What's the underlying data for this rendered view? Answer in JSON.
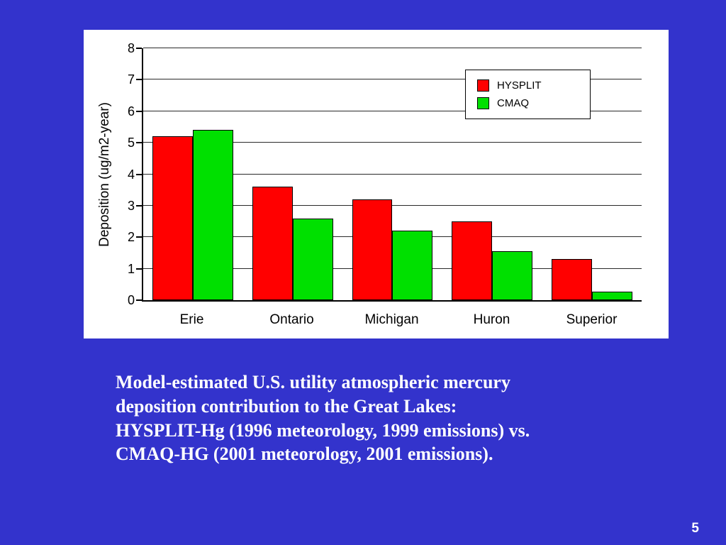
{
  "slide": {
    "page_number": "5",
    "background_color": "#3333cc",
    "caption_lines": [
      "Model-estimated U.S. utility atmospheric mercury",
      "deposition contribution to the Great Lakes:",
      "HYSPLIT-Hg (1996 meteorology, 1999 emissions) vs.",
      "CMAQ-HG (2001 meteorology, 2001 emissions)."
    ]
  },
  "chart_data": {
    "type": "bar",
    "categories": [
      "Erie",
      "Ontario",
      "Michigan",
      "Huron",
      "Superior"
    ],
    "series": [
      {
        "name": "HYSPLIT",
        "color": "#ff0000",
        "values": [
          5.2,
          3.6,
          3.2,
          2.5,
          1.3
        ]
      },
      {
        "name": "CMAQ",
        "color": "#00e000",
        "values": [
          5.4,
          2.6,
          2.2,
          1.55,
          0.28
        ]
      }
    ],
    "ylabel": "Deposition (ug/m2-year)",
    "ylim": [
      0,
      8
    ],
    "yticks": [
      0,
      1,
      2,
      3,
      4,
      5,
      6,
      7,
      8
    ],
    "grid": true,
    "legend_position": "top-right"
  }
}
